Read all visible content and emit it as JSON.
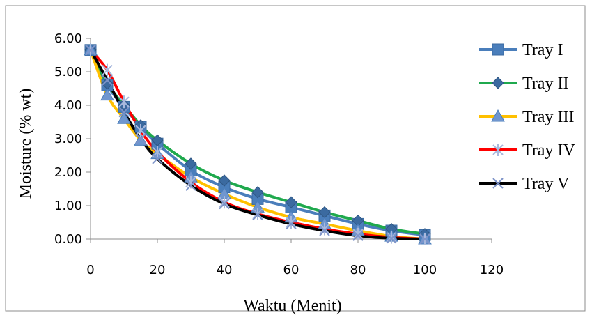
{
  "chart_data": {
    "type": "line",
    "title": "",
    "xlabel": "Waktu (Menit)",
    "ylabel": "Moisture (% wt)",
    "xlim": [
      0,
      120
    ],
    "ylim": [
      0,
      6
    ],
    "x_ticks": [
      "0",
      "20",
      "40",
      "60",
      "80",
      "100",
      "120"
    ],
    "y_ticks": [
      "0.00",
      "1.00",
      "2.00",
      "3.00",
      "4.00",
      "5.00",
      "6.00"
    ],
    "grid": false,
    "legend_position": "right",
    "series": [
      {
        "name": "Tray I",
        "color": "#4a7ebb",
        "marker": "square",
        "x": [
          0,
          5,
          10,
          15,
          20,
          30,
          40,
          50,
          60,
          70,
          80,
          90,
          100
        ],
        "y": [
          5.65,
          4.6,
          3.95,
          3.35,
          2.85,
          2.05,
          1.55,
          1.2,
          0.95,
          0.7,
          0.45,
          0.25,
          0.12
        ]
      },
      {
        "name": "Tray II",
        "color": "#1fa94d",
        "marker": "diamond",
        "x": [
          0,
          5,
          10,
          15,
          20,
          30,
          40,
          50,
          60,
          70,
          80,
          90,
          100
        ],
        "y": [
          5.65,
          4.65,
          4.0,
          3.4,
          2.95,
          2.25,
          1.75,
          1.4,
          1.1,
          0.8,
          0.55,
          0.3,
          0.15
        ]
      },
      {
        "name": "Tray III",
        "color": "#ffc000",
        "marker": "triangle",
        "x": [
          0,
          5,
          10,
          15,
          20,
          30,
          40,
          50,
          60,
          70,
          80,
          90,
          100
        ],
        "y": [
          5.65,
          4.3,
          3.6,
          2.95,
          2.55,
          1.85,
          1.35,
          0.95,
          0.65,
          0.45,
          0.25,
          0.08,
          0.0
        ]
      },
      {
        "name": "Tray IV",
        "color": "#ff0000",
        "marker": "star",
        "x": [
          0,
          5,
          10,
          15,
          20,
          30,
          40,
          50,
          60,
          70,
          80,
          90,
          100
        ],
        "y": [
          5.65,
          5.05,
          4.1,
          3.25,
          2.6,
          1.7,
          1.1,
          0.75,
          0.5,
          0.3,
          0.15,
          0.05,
          0.0
        ]
      },
      {
        "name": "Tray V",
        "color": "#000000",
        "marker": "cross",
        "x": [
          0,
          5,
          10,
          15,
          20,
          30,
          40,
          50,
          60,
          70,
          80,
          90,
          100
        ],
        "y": [
          5.65,
          4.75,
          3.8,
          3.0,
          2.4,
          1.6,
          1.05,
          0.72,
          0.45,
          0.25,
          0.1,
          0.02,
          0.0
        ]
      }
    ]
  }
}
